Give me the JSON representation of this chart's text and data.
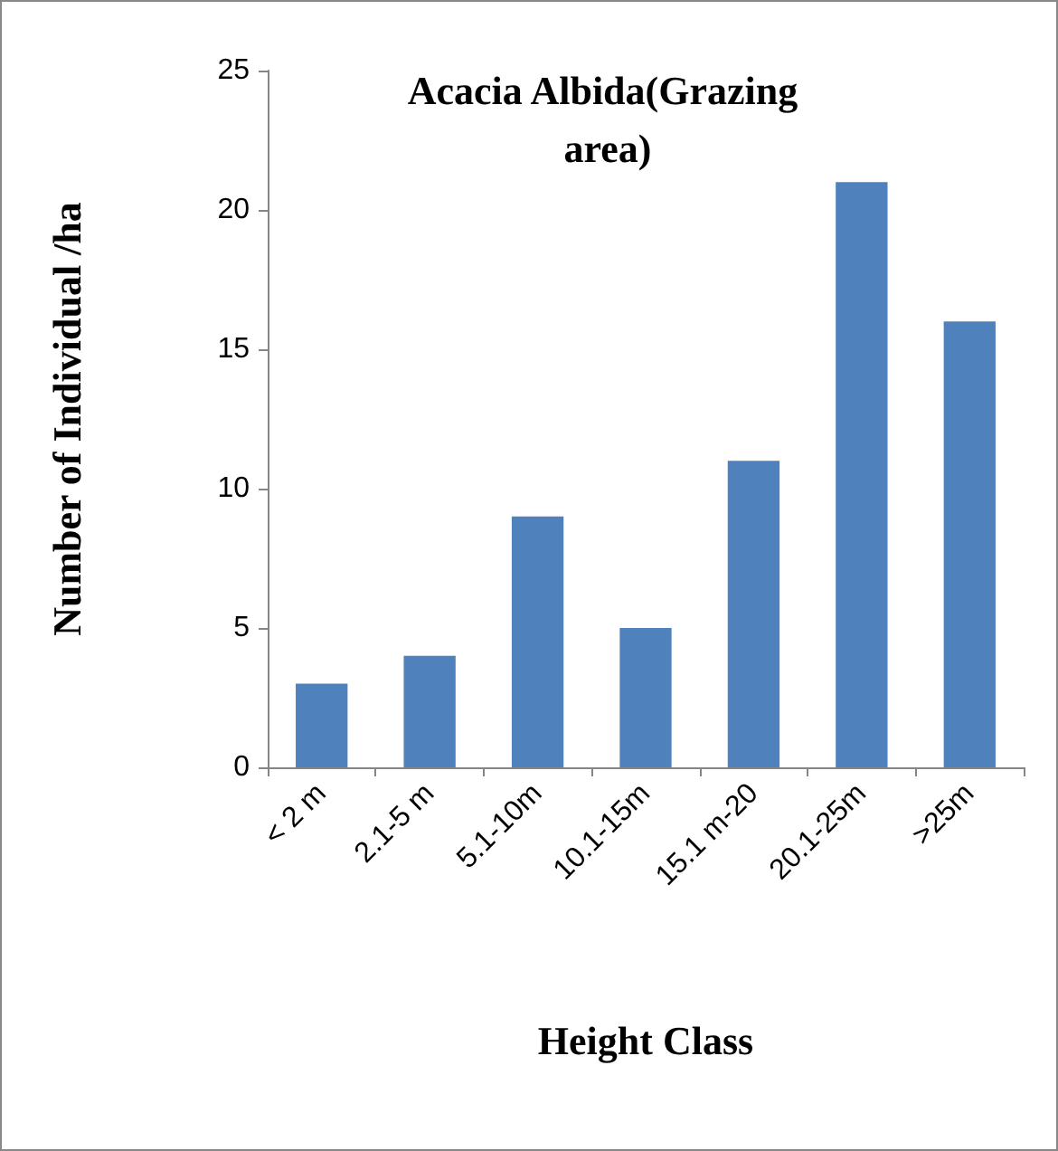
{
  "chart_data": {
    "type": "bar",
    "title": "Acacia Albida(Grazing area)",
    "xlabel": "Height Class",
    "ylabel": "Number of Individual /ha",
    "categories": [
      "< 2 m",
      "2.1-5 m",
      "5.1-10m",
      "10.1-15m",
      "15.1 m-20",
      "20.1-25m",
      ">25m"
    ],
    "values": [
      3,
      4,
      9,
      5,
      11,
      21,
      16
    ],
    "color": "#4f81bd",
    "ylim": [
      0,
      25
    ],
    "yticks": [
      0,
      5,
      10,
      15,
      20,
      25
    ],
    "grid": false
  }
}
